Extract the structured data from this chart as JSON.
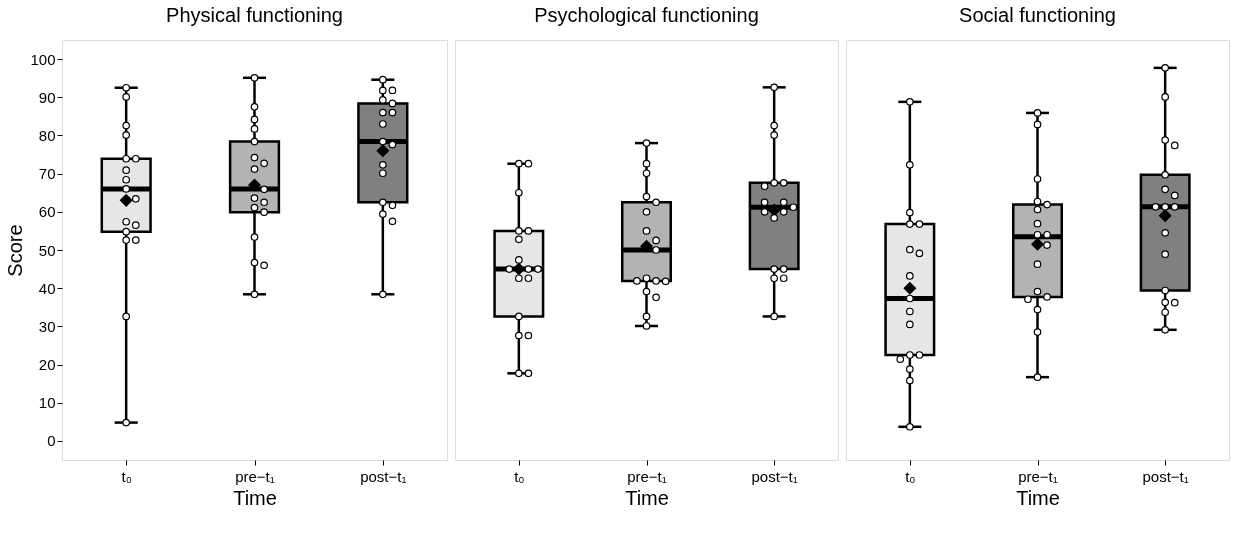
{
  "chart_data": [
    {
      "type": "box",
      "title": "Physical functioning",
      "xlabel": "Time",
      "ylabel": "Score",
      "categories": [
        "t₀",
        "pre−t₁",
        "post−t₁"
      ],
      "colors": [
        "#e6e6e6",
        "#b3b3b3",
        "#808080"
      ],
      "ylim": [
        -5,
        105
      ],
      "yticks": [
        0,
        10,
        20,
        30,
        40,
        50,
        60,
        70,
        80,
        90,
        100
      ],
      "boxes": [
        {
          "low": 4.8,
          "q1": 54.8,
          "median": 66,
          "q3": 73.9,
          "high": 92.5,
          "mean": 63
        },
        {
          "low": 38.4,
          "q1": 59.9,
          "median": 66,
          "q3": 78.4,
          "high": 95.1,
          "mean": 67
        },
        {
          "low": 38.4,
          "q1": 62.5,
          "median": 78.4,
          "q3": 88.4,
          "high": 94.6,
          "mean": 76
        }
      ],
      "series": [
        {
          "type": "scatter",
          "color": "#ffffff",
          "x": [
            "t₀",
            "t₀",
            "t₀",
            "t₀",
            "t₀",
            "t₀",
            "t₀",
            "t₀",
            "t₀",
            "t₀",
            "t₀",
            "t₀",
            "t₀",
            "t₀",
            "t₀",
            "t₀",
            "t₀"
          ],
          "values": [
            92.5,
            90.1,
            82.6,
            80.1,
            73.9,
            73.9,
            70.9,
            68.4,
            66.0,
            63.4,
            57.4,
            56.5,
            54.8,
            52.6,
            52.6,
            32.6,
            4.8
          ]
        },
        {
          "type": "scatter",
          "color": "#ffffff",
          "x": [
            "pre−t₁",
            "pre−t₁",
            "pre−t₁",
            "pre−t₁",
            "pre−t₁",
            "pre−t₁",
            "pre−t₁",
            "pre−t₁",
            "pre−t₁",
            "pre−t₁",
            "pre−t₁",
            "pre−t₁",
            "pre−t₁",
            "pre−t₁",
            "pre−t₁",
            "pre−t₁",
            "pre−t₁"
          ],
          "values": [
            95.1,
            87.5,
            84.2,
            81.7,
            78.4,
            74.2,
            72.7,
            71.2,
            65.9,
            63.6,
            62.5,
            61.1,
            59.9,
            53.4,
            46.7,
            46.0,
            38.4
          ]
        },
        {
          "type": "scatter",
          "color": "#ffffff",
          "x": [
            "post−t₁",
            "post−t₁",
            "post−t₁",
            "post−t₁",
            "post−t₁",
            "post−t₁",
            "post−t₁",
            "post−t₁",
            "post−t₁",
            "post−t₁",
            "post−t₁",
            "post−t₁",
            "post−t₁",
            "post−t₁",
            "post−t₁",
            "post−t₁",
            "post−t₁"
          ],
          "values": [
            94.6,
            91.8,
            91.8,
            89.3,
            88.4,
            86.0,
            86.0,
            83.0,
            78.4,
            77.6,
            72.3,
            70.1,
            62.5,
            61.7,
            59.4,
            57.5,
            38.4
          ]
        }
      ]
    },
    {
      "type": "box",
      "title": "Psychological functioning",
      "xlabel": "Time",
      "categories": [
        "t₀",
        "pre−t₁",
        "post−t₁"
      ],
      "colors": [
        "#e6e6e6",
        "#b3b3b3",
        "#808080"
      ],
      "ylim": [
        -5,
        105
      ],
      "yticks": [
        0,
        10,
        20,
        30,
        40,
        50,
        60,
        70,
        80,
        90,
        100
      ],
      "tick_labels": "x",
      "boxes": [
        {
          "low": 17.7,
          "q1": 32.6,
          "median": 45,
          "q3": 55,
          "high": 72.6,
          "mean": 45
        },
        {
          "low": 30.1,
          "q1": 41.9,
          "median": 50,
          "q3": 62.5,
          "high": 78,
          "mean": 51
        },
        {
          "low": 32.6,
          "q1": 45,
          "median": 61.2,
          "q3": 67.6,
          "high": 92.6,
          "mean": 60.5
        }
      ],
      "series": [
        {
          "type": "scatter",
          "color": "#ffffff",
          "x": [
            "t₀",
            "t₀",
            "t₀",
            "t₀",
            "t₀",
            "t₀",
            "t₀",
            "t₀",
            "t₀",
            "t₀",
            "t₀",
            "t₀",
            "t₀",
            "t₀",
            "t₀",
            "t₀",
            "t₀"
          ],
          "values": [
            72.6,
            72.6,
            65.0,
            55.0,
            55.0,
            52.8,
            47.4,
            45.0,
            45.0,
            45.0,
            42.6,
            42.6,
            32.6,
            27.6,
            27.6,
            17.7,
            17.7
          ]
        },
        {
          "type": "scatter",
          "color": "#ffffff",
          "x": [
            "pre−t₁",
            "pre−t₁",
            "pre−t₁",
            "pre−t₁",
            "pre−t₁",
            "pre−t₁",
            "pre−t₁",
            "pre−t₁",
            "pre−t₁",
            "pre−t₁",
            "pre−t₁",
            "pre−t₁",
            "pre−t₁",
            "pre−t₁",
            "pre−t₁",
            "pre−t₁",
            "pre−t₁"
          ],
          "values": [
            78.0,
            72.6,
            70.1,
            64.0,
            62.5,
            60.0,
            55.0,
            52.5,
            50.0,
            42.6,
            41.9,
            41.9,
            41.8,
            39.1,
            37.6,
            32.6,
            30.1
          ]
        },
        {
          "type": "scatter",
          "color": "#ffffff",
          "x": [
            "post−t₁",
            "post−t₁",
            "post−t₁",
            "post−t₁",
            "post−t₁",
            "post−t₁",
            "post−t₁",
            "post−t₁",
            "post−t₁",
            "post−t₁",
            "post−t₁",
            "post−t₁",
            "post−t₁",
            "post−t₁",
            "post−t₁",
            "post−t₁",
            "post−t₁"
          ],
          "values": [
            92.6,
            82.6,
            80.1,
            67.6,
            67.6,
            66.7,
            62.5,
            62.5,
            61.2,
            60.0,
            60.0,
            58.4,
            45.0,
            45.0,
            42.6,
            42.6,
            32.6
          ]
        }
      ]
    },
    {
      "type": "box",
      "title": "Social functioning",
      "xlabel": "Time",
      "categories": [
        "t₀",
        "pre−t₁",
        "post−t₁"
      ],
      "colors": [
        "#e6e6e6",
        "#b3b3b3",
        "#808080"
      ],
      "ylim": [
        -5,
        105
      ],
      "yticks": [
        0,
        10,
        20,
        30,
        40,
        50,
        60,
        70,
        80,
        90,
        100
      ],
      "tick_labels": "x",
      "boxes": [
        {
          "low": 3.7,
          "q1": 22.5,
          "median": 37.3,
          "q3": 56.8,
          "high": 88.8,
          "mean": 40
        },
        {
          "low": 16.7,
          "q1": 37.7,
          "median": 53.5,
          "q3": 61.9,
          "high": 85.9,
          "mean": 51.5
        },
        {
          "low": 29.1,
          "q1": 39.4,
          "median": 61.3,
          "q3": 69.7,
          "high": 97.7,
          "mean": 59
        }
      ],
      "series": [
        {
          "type": "scatter",
          "color": "#ffffff",
          "x": [
            "t₀",
            "t₀",
            "t₀",
            "t₀",
            "t₀",
            "t₀",
            "t₀",
            "t₀",
            "t₀",
            "t₀",
            "t₀",
            "t₀",
            "t₀",
            "t₀",
            "t₀",
            "t₀",
            "t₀"
          ],
          "values": [
            88.8,
            72.3,
            59.8,
            56.8,
            56.8,
            50.1,
            49.1,
            43.2,
            37.3,
            33.9,
            30.5,
            22.5,
            22.5,
            21.4,
            18.8,
            15.8,
            3.7
          ]
        },
        {
          "type": "scatter",
          "color": "#ffffff",
          "x": [
            "pre−t₁",
            "pre−t₁",
            "pre−t₁",
            "pre−t₁",
            "pre−t₁",
            "pre−t₁",
            "pre−t₁",
            "pre−t₁",
            "pre−t₁",
            "pre−t₁",
            "pre−t₁",
            "pre−t₁",
            "pre−t₁",
            "pre−t₁",
            "pre−t₁",
            "pre−t₁",
            "pre−t₁"
          ],
          "values": [
            85.9,
            82.9,
            68.6,
            62.7,
            61.9,
            60.6,
            56.9,
            54.0,
            54.0,
            51.3,
            46.3,
            39.1,
            37.7,
            37.1,
            34.4,
            28.5,
            16.7
          ]
        },
        {
          "type": "scatter",
          "color": "#ffffff",
          "x": [
            "post−t₁",
            "post−t₁",
            "post−t₁",
            "post−t₁",
            "post−t₁",
            "post−t₁",
            "post−t₁",
            "post−t₁",
            "post−t₁",
            "post−t₁",
            "post−t₁",
            "post−t₁",
            "post−t₁",
            "post−t₁",
            "post−t₁",
            "post−t₁",
            "post−t₁"
          ],
          "values": [
            97.7,
            90.1,
            78.8,
            77.4,
            69.7,
            65.9,
            64.3,
            61.3,
            61.3,
            61.3,
            54.5,
            48.9,
            39.4,
            36.3,
            36.2,
            33.7,
            29.1
          ]
        }
      ]
    }
  ]
}
